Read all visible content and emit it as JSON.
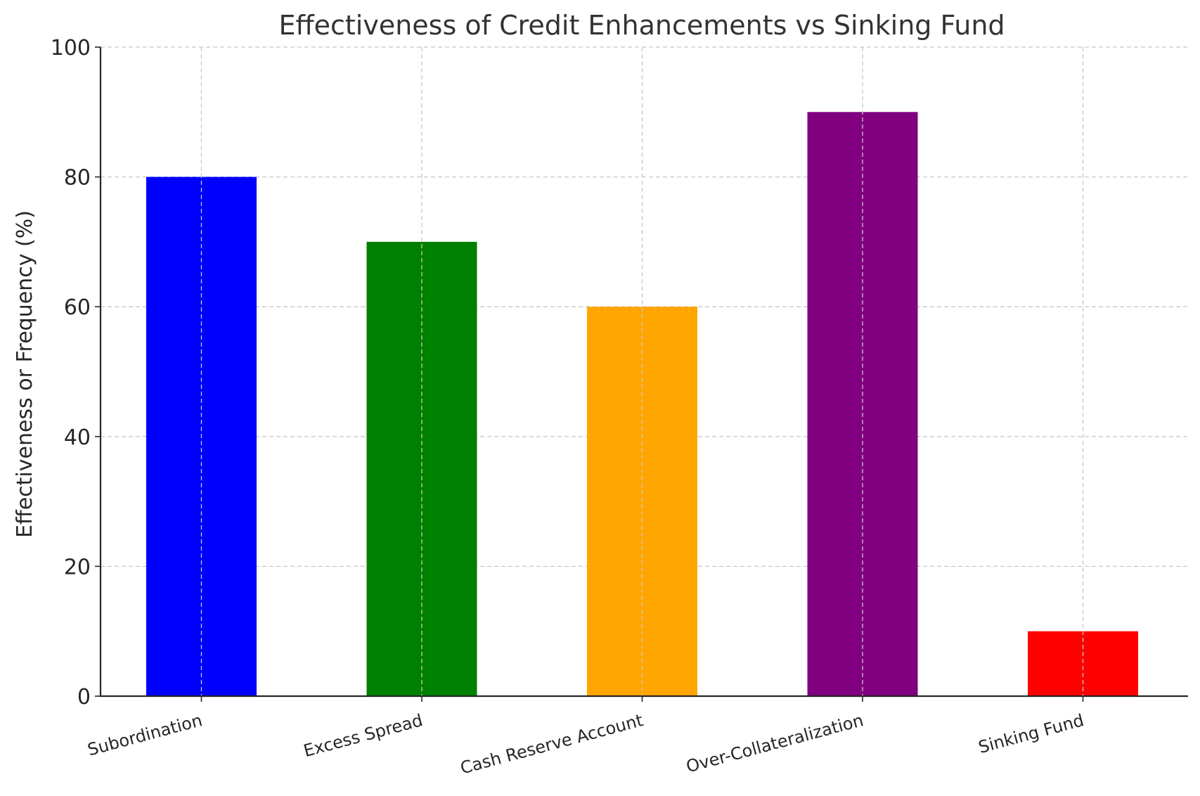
{
  "chart_data": {
    "type": "bar",
    "title": "Effectiveness of Credit Enhancements vs Sinking Fund",
    "xlabel": "",
    "ylabel": "Effectiveness or Frequency (%)",
    "categories": [
      "Subordination",
      "Excess Spread",
      "Cash Reserve Account",
      "Over-Collateralization",
      "Sinking Fund"
    ],
    "values": [
      80,
      70,
      60,
      90,
      10
    ],
    "colors": [
      "#0000ff",
      "#008000",
      "#ffa500",
      "#800080",
      "#ff0000"
    ],
    "ylim": [
      0,
      100
    ],
    "yticks": [
      0,
      20,
      40,
      60,
      80,
      100
    ],
    "grid": true
  }
}
